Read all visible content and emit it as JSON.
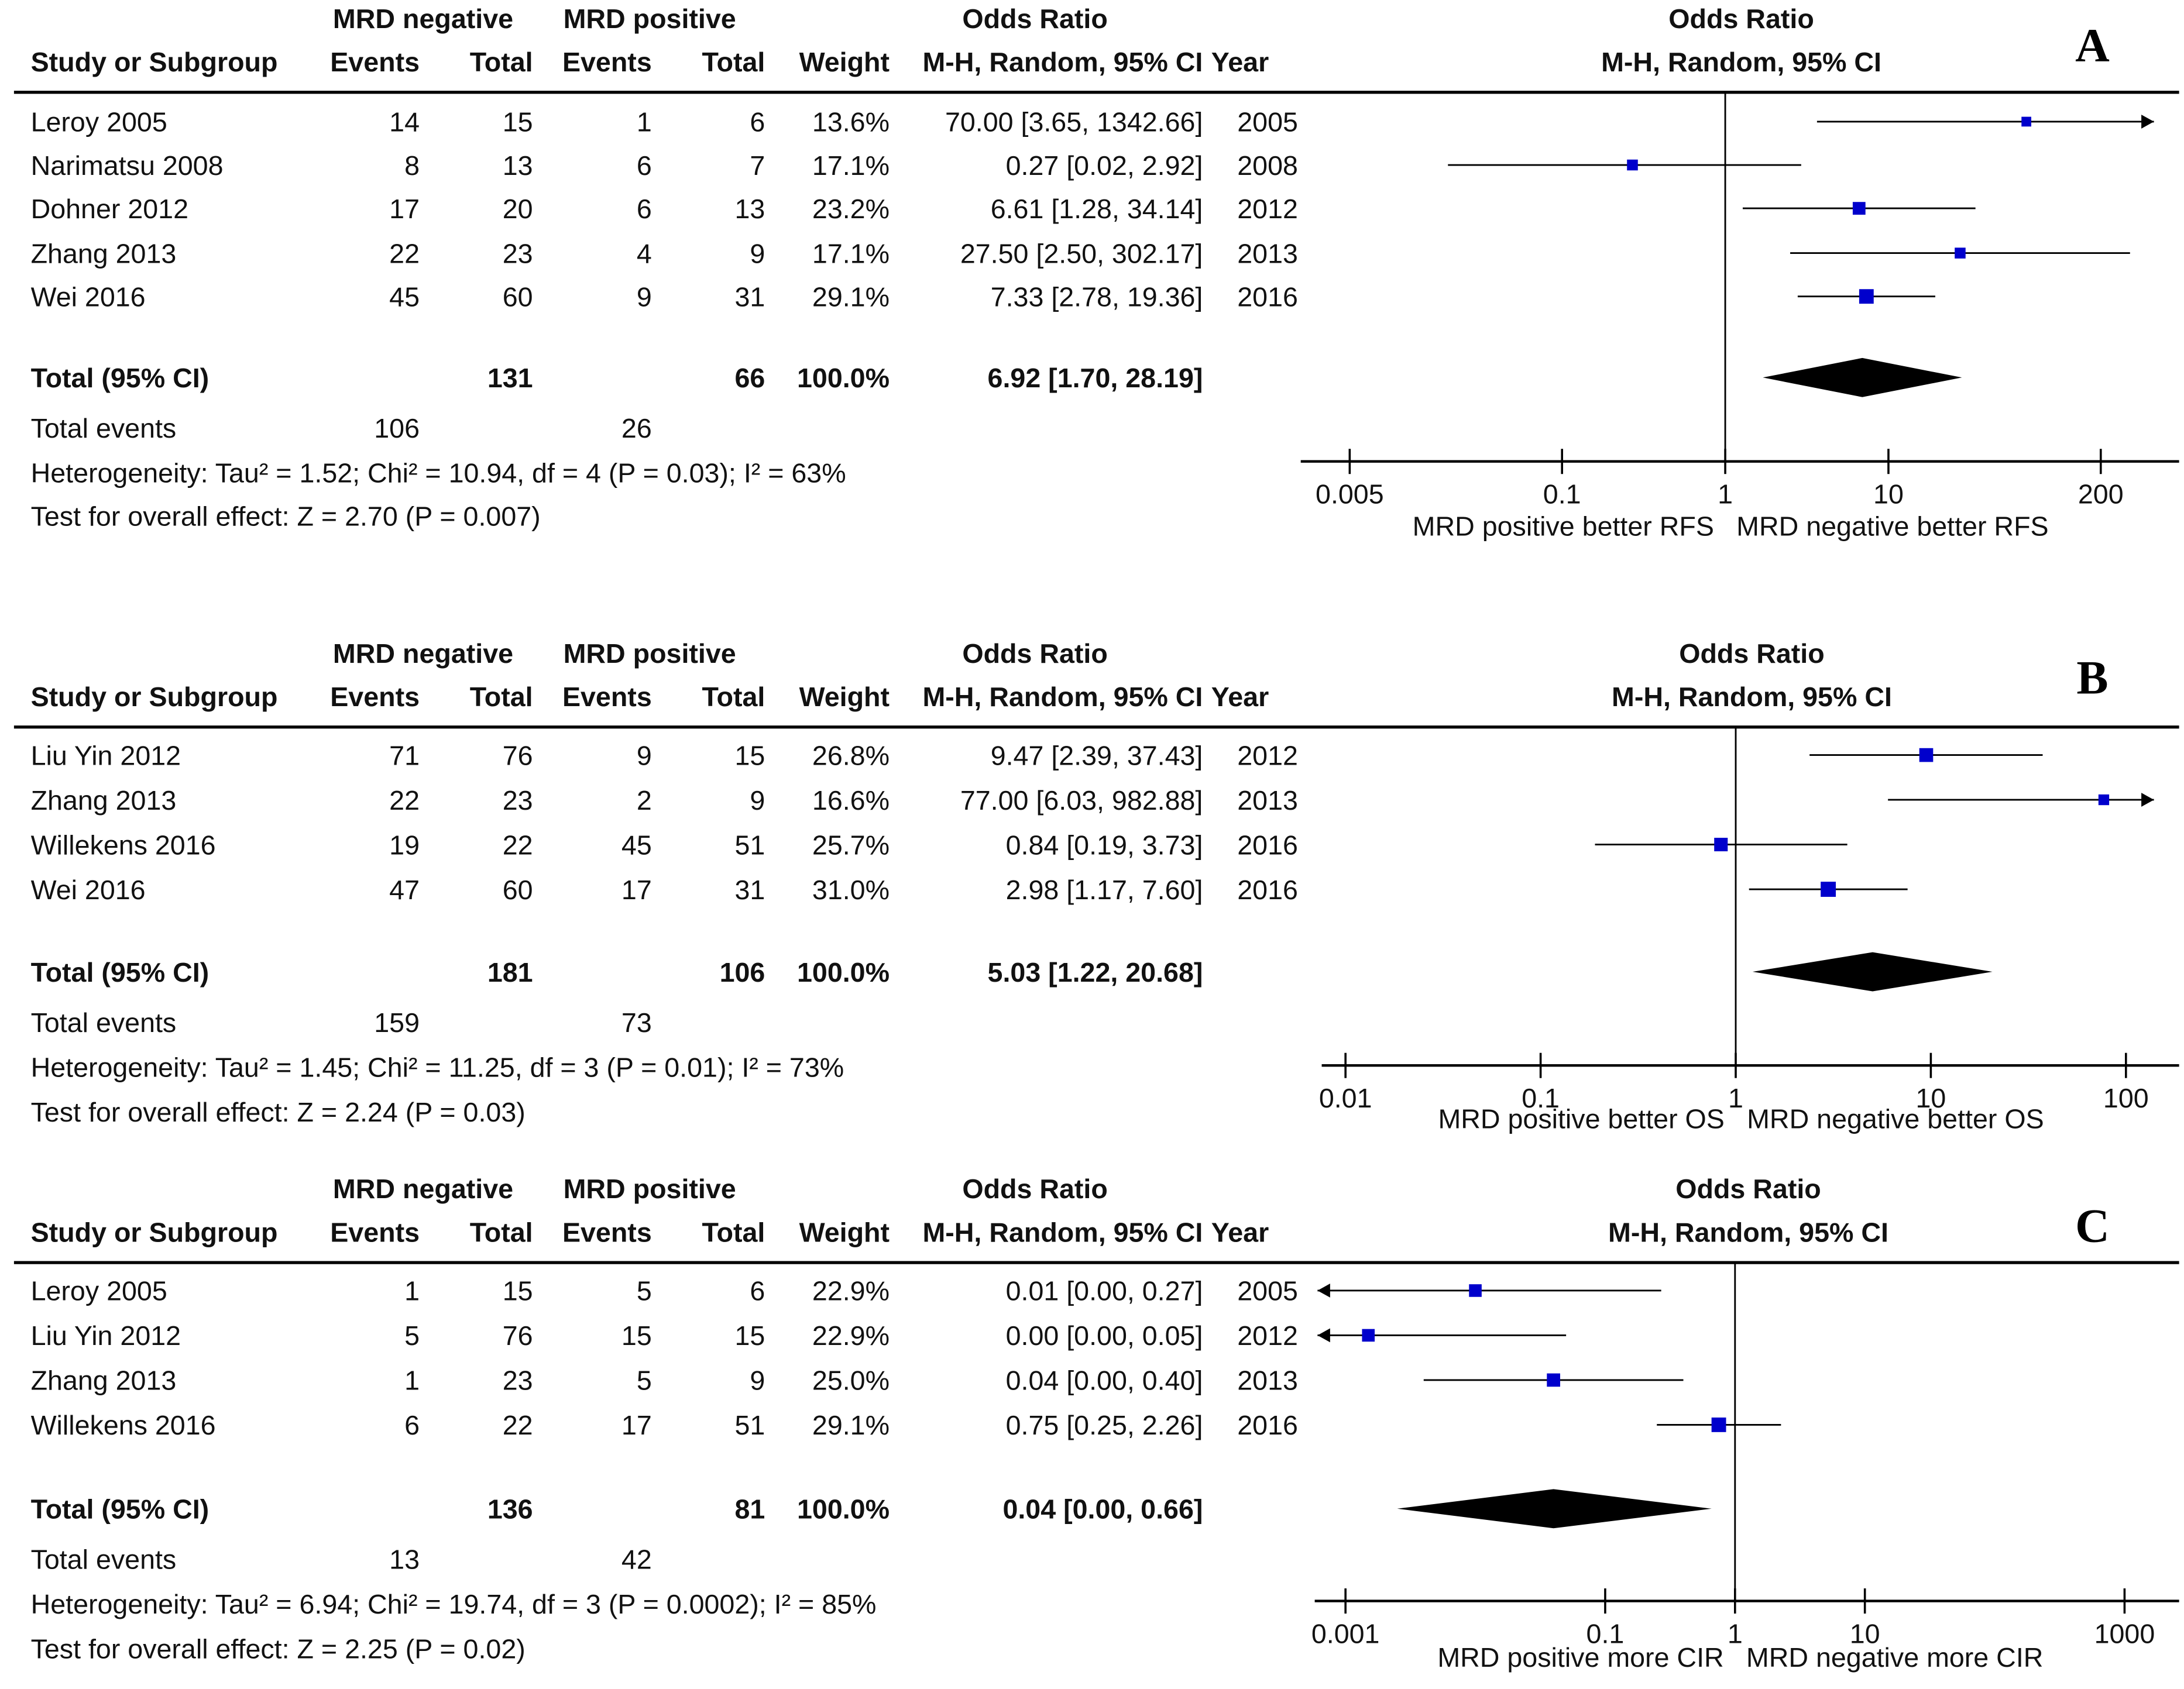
{
  "chart_data": [
    {
      "type": "forest",
      "panel_label": "A",
      "headers": {
        "group1": "MRD negative",
        "group2": "MRD positive",
        "effect_main": "Odds Ratio",
        "effect_sub": "M-H, Random, 95% CI",
        "study": "Study or Subgroup",
        "events": "Events",
        "total": "Total",
        "weight": "Weight",
        "year": "Year"
      },
      "studies": [
        {
          "name": "Leroy 2005",
          "e1": "14",
          "t1": "15",
          "e2": "1",
          "t2": "6",
          "weight": "13.6%",
          "ci_text": "70.00 [3.65, 1342.66]",
          "year": "2005",
          "or": 70.0,
          "lo": 3.65,
          "hi": 1342.66
        },
        {
          "name": "Narimatsu 2008",
          "e1": "8",
          "t1": "13",
          "e2": "6",
          "t2": "7",
          "weight": "17.1%",
          "ci_text": "0.27 [0.02, 2.92]",
          "year": "2008",
          "or": 0.27,
          "lo": 0.02,
          "hi": 2.92
        },
        {
          "name": "Dohner 2012",
          "e1": "17",
          "t1": "20",
          "e2": "6",
          "t2": "13",
          "weight": "23.2%",
          "ci_text": "6.61 [1.28, 34.14]",
          "year": "2012",
          "or": 6.61,
          "lo": 1.28,
          "hi": 34.14
        },
        {
          "name": "Zhang 2013",
          "e1": "22",
          "t1": "23",
          "e2": "4",
          "t2": "9",
          "weight": "17.1%",
          "ci_text": "27.50 [2.50, 302.17]",
          "year": "2013",
          "or": 27.5,
          "lo": 2.5,
          "hi": 302.17
        },
        {
          "name": "Wei 2016",
          "e1": "45",
          "t1": "60",
          "e2": "9",
          "t2": "31",
          "weight": "29.1%",
          "ci_text": "7.33 [2.78, 19.36]",
          "year": "2016",
          "or": 7.33,
          "lo": 2.78,
          "hi": 19.36
        }
      ],
      "total": {
        "label": "Total (95% CI)",
        "t1": "131",
        "t2": "66",
        "weight": "100.0%",
        "ci_text": "6.92 [1.70, 28.19]",
        "or": 6.92,
        "lo": 1.7,
        "hi": 28.19
      },
      "total_events": {
        "label": "Total events",
        "e1": "106",
        "e2": "26"
      },
      "heterogeneity": "Heterogeneity: Tau² = 1.52; Chi² = 10.94, df = 4 (P = 0.03); I² = 63%",
      "overall_effect": "Test for overall effect: Z = 2.70 (P = 0.007)",
      "axis": {
        "ticks": [
          0.005,
          0.1,
          1,
          10,
          200
        ],
        "tick_labels": [
          "0.005",
          "0.1",
          "1",
          "10",
          "200"
        ],
        "scale": "log",
        "range": [
          0.005,
          200
        ]
      },
      "favours_left": "MRD positive better RFS",
      "favours_right": "MRD negative better RFS",
      "marker_color": "#0000cc"
    },
    {
      "type": "forest",
      "panel_label": "B",
      "headers": {
        "group1": "MRD negative",
        "group2": "MRD positive",
        "effect_main": "Odds Ratio",
        "effect_sub": "M-H, Random, 95% CI",
        "study": "Study or Subgroup",
        "events": "Events",
        "total": "Total",
        "weight": "Weight",
        "year": "Year"
      },
      "studies": [
        {
          "name": "Liu Yin 2012",
          "e1": "71",
          "t1": "76",
          "e2": "9",
          "t2": "15",
          "weight": "26.8%",
          "ci_text": "9.47 [2.39, 37.43]",
          "year": "2012",
          "or": 9.47,
          "lo": 2.39,
          "hi": 37.43
        },
        {
          "name": "Zhang 2013",
          "e1": "22",
          "t1": "23",
          "e2": "2",
          "t2": "9",
          "weight": "16.6%",
          "ci_text": "77.00 [6.03, 982.88]",
          "year": "2013",
          "or": 77.0,
          "lo": 6.03,
          "hi": 982.88
        },
        {
          "name": "Willekens 2016",
          "e1": "19",
          "t1": "22",
          "e2": "45",
          "t2": "51",
          "weight": "25.7%",
          "ci_text": "0.84 [0.19, 3.73]",
          "year": "2016",
          "or": 0.84,
          "lo": 0.19,
          "hi": 3.73
        },
        {
          "name": "Wei 2016",
          "e1": "47",
          "t1": "60",
          "e2": "17",
          "t2": "31",
          "weight": "31.0%",
          "ci_text": "2.98 [1.17, 7.60]",
          "year": "2016",
          "or": 2.98,
          "lo": 1.17,
          "hi": 7.6
        }
      ],
      "total": {
        "label": "Total (95% CI)",
        "t1": "181",
        "t2": "106",
        "weight": "100.0%",
        "ci_text": "5.03 [1.22, 20.68]",
        "or": 5.03,
        "lo": 1.22,
        "hi": 20.68
      },
      "total_events": {
        "label": "Total events",
        "e1": "159",
        "e2": "73"
      },
      "heterogeneity": "Heterogeneity: Tau² = 1.45; Chi² = 11.25, df = 3 (P = 0.01); I² = 73%",
      "overall_effect": "Test for overall effect: Z = 2.24 (P = 0.03)",
      "axis": {
        "ticks": [
          0.01,
          0.1,
          1,
          10,
          100
        ],
        "tick_labels": [
          "0.01",
          "0.1",
          "1",
          "10",
          "100"
        ],
        "scale": "log",
        "range": [
          0.01,
          100
        ]
      },
      "favours_left": "MRD positive better OS",
      "favours_right": "MRD negative better OS",
      "marker_color": "#0000cc"
    },
    {
      "type": "forest",
      "panel_label": "C",
      "headers": {
        "group1": "MRD negative",
        "group2": "MRD positive",
        "effect_main": "Odds Ratio",
        "effect_sub": "M-H, Random, 95% CI",
        "study": "Study or Subgroup",
        "events": "Events",
        "total": "Total",
        "weight": "Weight",
        "year": "Year"
      },
      "studies": [
        {
          "name": "Leroy 2005",
          "e1": "1",
          "t1": "15",
          "e2": "5",
          "t2": "6",
          "weight": "22.9%",
          "ci_text": "0.01 [0.00, 0.27]",
          "year": "2005",
          "or": 0.01,
          "lo": 0.0004,
          "hi": 0.27
        },
        {
          "name": "Liu Yin 2012",
          "e1": "5",
          "t1": "76",
          "e2": "15",
          "t2": "15",
          "weight": "22.9%",
          "ci_text": "0.00 [0.00, 0.05]",
          "year": "2012",
          "or": 0.0015,
          "lo": 4e-05,
          "hi": 0.05
        },
        {
          "name": "Zhang 2013",
          "e1": "1",
          "t1": "23",
          "e2": "5",
          "t2": "9",
          "weight": "25.0%",
          "ci_text": "0.04 [0.00, 0.40]",
          "year": "2013",
          "or": 0.04,
          "lo": 0.004,
          "hi": 0.4
        },
        {
          "name": "Willekens 2016",
          "e1": "6",
          "t1": "22",
          "e2": "17",
          "t2": "51",
          "weight": "29.1%",
          "ci_text": "0.75 [0.25, 2.26]",
          "year": "2016",
          "or": 0.75,
          "lo": 0.25,
          "hi": 2.26
        }
      ],
      "total": {
        "label": "Total (95% CI)",
        "t1": "136",
        "t2": "81",
        "weight": "100.0%",
        "ci_text": "0.04 [0.00, 0.66]",
        "or": 0.04,
        "lo": 0.0025,
        "hi": 0.66
      },
      "total_events": {
        "label": "Total events",
        "e1": "13",
        "e2": "42"
      },
      "heterogeneity": "Heterogeneity: Tau² = 6.94; Chi² = 19.74, df = 3 (P = 0.0002); I² = 85%",
      "overall_effect": "Test for overall effect: Z = 2.25 (P = 0.02)",
      "axis": {
        "ticks": [
          0.001,
          0.1,
          1,
          10,
          1000
        ],
        "tick_labels": [
          "0.001",
          "0.1",
          "1",
          "10",
          "1000"
        ],
        "scale": "log",
        "range": [
          0.001,
          1000
        ]
      },
      "favours_left": "MRD positive more CIR",
      "favours_right": "MRD negative more CIR",
      "marker_color": "#0000cc"
    }
  ]
}
